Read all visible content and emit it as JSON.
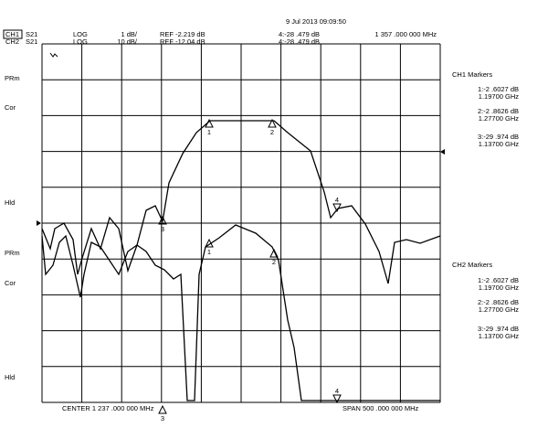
{
  "header": {
    "timestamp": "9 Jul 2013 09:09:50",
    "ch1": {
      "label": "CH1",
      "param": "S21",
      "format": "LOG",
      "scale": "1 dB/",
      "ref": "REF -2.219 dB",
      "marker_readout": "4:-28 .479 dB",
      "marker_freq": "1 357 .000 000 MHz"
    },
    "ch2": {
      "label": "CH2",
      "param": "S21",
      "format": "LOG",
      "scale": "10 dB/",
      "ref": "REF -12.04 dB",
      "marker_readout": "4:-28 .479 dB"
    }
  },
  "status_labels": {
    "upper": [
      "PRm",
      "Cor",
      "Hld"
    ],
    "lower": [
      "PRm",
      "Cor",
      "Hld"
    ]
  },
  "markers": {
    "ch1": {
      "title": "CH1 Markers",
      "entries": [
        {
          "value": "1:-2 .6027 dB",
          "freq": "1.19700 GHz"
        },
        {
          "value": "2:-2 .8626 dB",
          "freq": "1.27700 GHz"
        },
        {
          "value": "3:-29 .974 dB",
          "freq": "1.13700 GHz"
        }
      ]
    },
    "ch2": {
      "title": "CH2 Markers",
      "entries": [
        {
          "value": "1:-2 .6027 dB",
          "freq": "1.19700 GHz"
        },
        {
          "value": "2:-2 .8626 dB",
          "freq": "1.27700 GHz"
        },
        {
          "value": "3:-29 .974 dB",
          "freq": "1.13700 GHz"
        }
      ]
    }
  },
  "trace_markers": {
    "ch1": [
      "1",
      "2",
      "3",
      "4"
    ],
    "ch2": [
      "1",
      "2",
      "3",
      "4"
    ]
  },
  "footer": {
    "center": "CENTER 1 237 .000 000 MHz",
    "span": "SPAN 500 .000 000 MHz"
  }
}
